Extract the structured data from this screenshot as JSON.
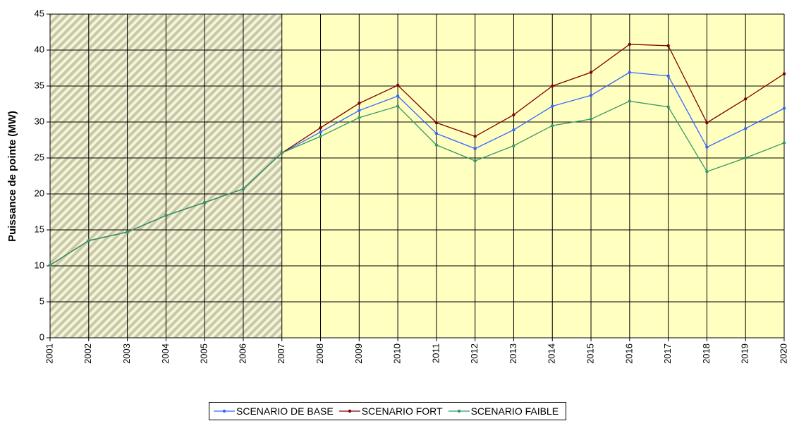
{
  "chart_data": {
    "type": "line",
    "y_label": "Puissance de pointe (MW)",
    "categories": [
      "2001",
      "2002",
      "2003",
      "2004",
      "2005",
      "2006",
      "2007",
      "2008",
      "2009",
      "2010",
      "2011",
      "2012",
      "2013",
      "2014",
      "2015",
      "2016",
      "2017",
      "2018",
      "2019",
      "2020"
    ],
    "series": [
      {
        "name": "SCENARIO DE BASE",
        "color": "#3366ff",
        "values": [
          10.1,
          13.5,
          14.7,
          17.0,
          18.8,
          20.7,
          25.7,
          28.6,
          31.6,
          33.6,
          28.4,
          26.3,
          28.9,
          32.2,
          33.7,
          36.9,
          36.4,
          26.5,
          29.1,
          31.9
        ]
      },
      {
        "name": "SCENARIO FORT",
        "color": "#800000",
        "values": [
          10.1,
          13.5,
          14.7,
          17.0,
          18.8,
          20.7,
          25.7,
          29.2,
          32.6,
          35.1,
          29.9,
          28.0,
          31.0,
          35.0,
          36.9,
          40.8,
          40.6,
          29.9,
          33.2,
          36.7
        ]
      },
      {
        "name": "SCENARIO FAIBLE",
        "color": "#339966",
        "values": [
          10.1,
          13.5,
          14.7,
          17.0,
          18.8,
          20.7,
          25.7,
          28.0,
          30.6,
          32.2,
          26.8,
          24.6,
          26.7,
          29.5,
          30.4,
          32.9,
          32.1,
          23.1,
          25.0,
          27.1
        ]
      }
    ],
    "ylim": [
      0,
      45
    ],
    "yticks": [
      0,
      5,
      10,
      15,
      20,
      25,
      30,
      35,
      40,
      45
    ],
    "grid": true,
    "legend": "bottom"
  }
}
